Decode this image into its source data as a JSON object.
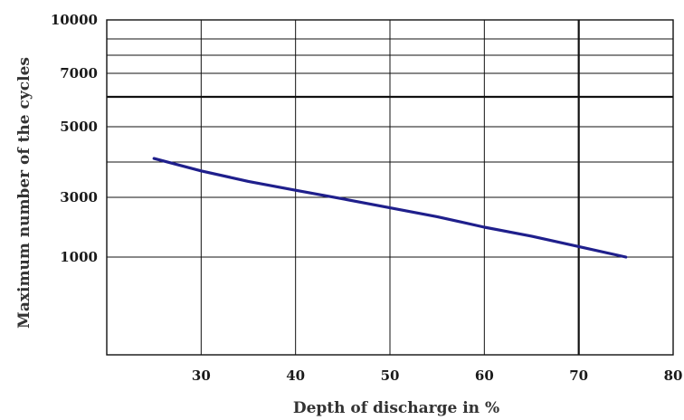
{
  "chart_data": {
    "type": "line",
    "xlabel": "Depth of discharge in %",
    "ylabel": "Maximum number of the cycles",
    "xlim": [
      20,
      80
    ],
    "ylim": [
      -2000,
      10000
    ],
    "x_ticks": [
      30,
      40,
      50,
      60,
      70,
      80
    ],
    "y_ticks": [
      1000,
      3000,
      5000,
      7000,
      10000
    ],
    "grid": true,
    "series": [
      {
        "color": "#1f1f8c",
        "x": [
          25,
          30,
          35,
          40,
          45,
          50,
          55,
          60,
          65,
          70,
          75
        ],
        "y": [
          4100,
          3750,
          3450,
          3200,
          2950,
          2650,
          2350,
          2000,
          1700,
          1350,
          1000
        ]
      }
    ]
  }
}
